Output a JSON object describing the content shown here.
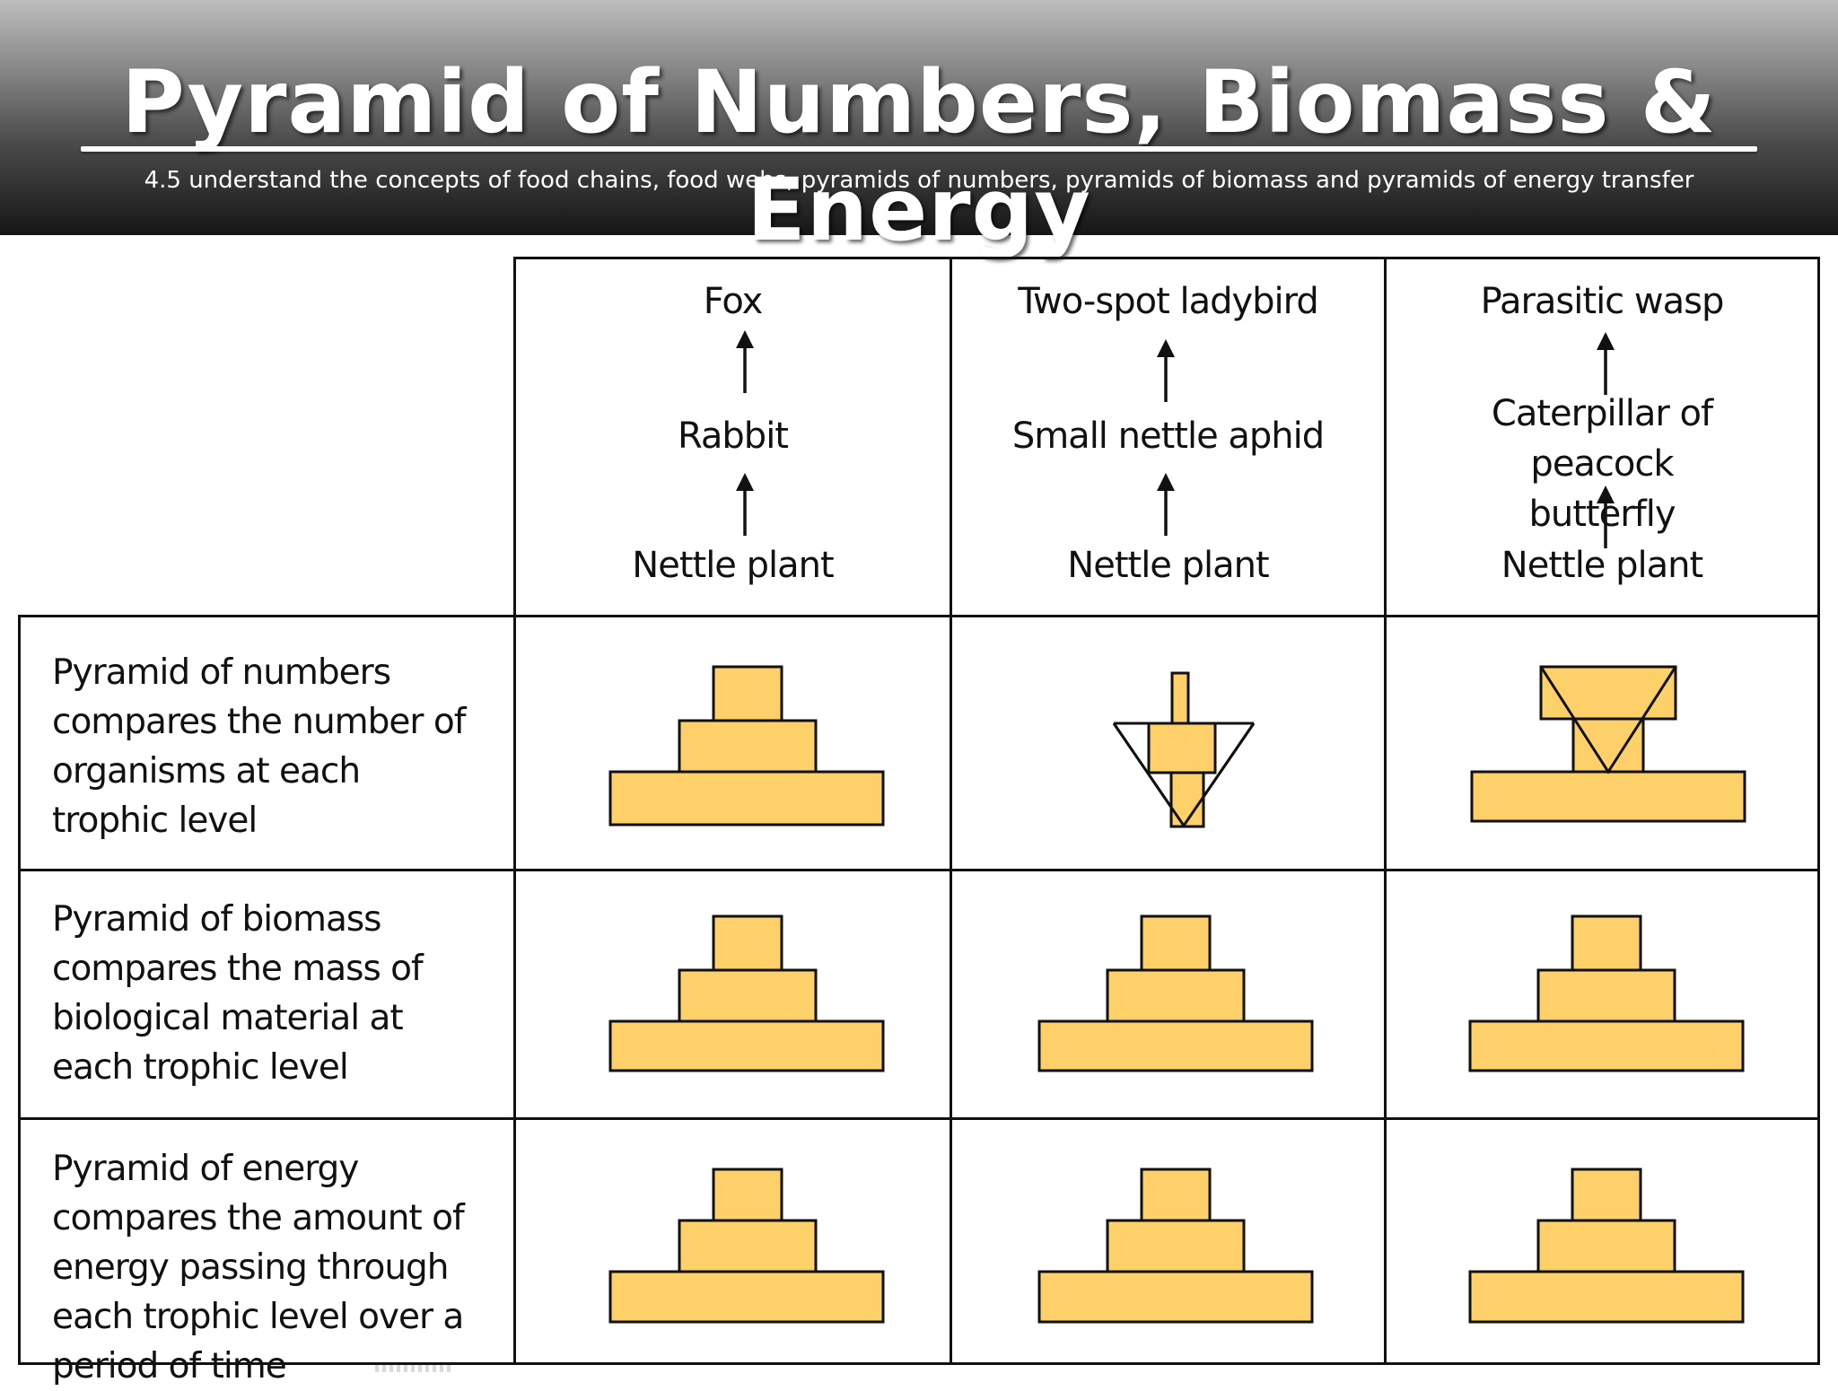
{
  "title": "Pyramid of Numbers, Biomass & Energy",
  "subtitle": "4.5 understand the concepts of food chains, food webs, pyramids of numbers, pyramids of biomass and pyramids of energy transfer",
  "colors": {
    "block_fill": "#fdd06a",
    "outline": "#111111"
  },
  "food_chains": [
    {
      "top": "Fox",
      "middle": "Rabbit",
      "bottom": "Nettle plant"
    },
    {
      "top": "Two-spot ladybird",
      "middle": "Small nettle aphid",
      "bottom": "Nettle plant"
    },
    {
      "top": "Parasitic wasp",
      "middle": "Caterpillar of peacock butterfly",
      "bottom": "Nettle plant"
    }
  ],
  "rows": [
    {
      "label": "Pyramid of numbers compares the number of organisms at each trophic level"
    },
    {
      "label": "Pyramid of biomass compares the mass of biological material at each trophic level"
    },
    {
      "label": "Pyramid of energy compares the amount of energy passing through each trophic level over a period of time"
    }
  ]
}
